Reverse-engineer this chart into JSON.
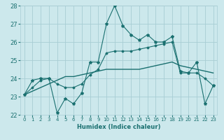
{
  "xlabel": "Humidex (Indice chaleur)",
  "background_color": "#cce8ec",
  "grid_color": "#a8cdd4",
  "line_color": "#1a7070",
  "xlim": [
    -0.5,
    23.5
  ],
  "ylim": [
    22,
    28
  ],
  "yticks": [
    22,
    23,
    24,
    25,
    26,
    27,
    28
  ],
  "xticks": [
    0,
    1,
    2,
    3,
    4,
    5,
    6,
    7,
    8,
    9,
    10,
    11,
    12,
    13,
    14,
    15,
    16,
    17,
    18,
    19,
    20,
    21,
    22,
    23
  ],
  "x": [
    0,
    1,
    2,
    3,
    4,
    5,
    6,
    7,
    8,
    9,
    10,
    11,
    12,
    13,
    14,
    15,
    16,
    17,
    18,
    19,
    20,
    21,
    22,
    23
  ],
  "line1": [
    23.1,
    23.9,
    24.0,
    24.0,
    22.1,
    22.9,
    22.6,
    23.2,
    24.9,
    24.9,
    27.0,
    28.0,
    26.9,
    26.4,
    26.1,
    26.4,
    26.0,
    26.0,
    26.3,
    24.4,
    24.3,
    24.9,
    22.6,
    23.6
  ],
  "line2": [
    23.1,
    23.5,
    23.9,
    24.0,
    23.7,
    23.5,
    23.5,
    23.7,
    24.2,
    24.5,
    25.4,
    25.5,
    25.5,
    25.5,
    25.6,
    25.7,
    25.8,
    25.9,
    26.0,
    24.3,
    24.3,
    24.3,
    24.0,
    23.6
  ],
  "line3": [
    23.1,
    23.3,
    23.5,
    23.7,
    23.9,
    24.1,
    24.1,
    24.2,
    24.3,
    24.4,
    24.5,
    24.5,
    24.5,
    24.5,
    24.5,
    24.6,
    24.7,
    24.8,
    24.9,
    24.7,
    24.6,
    24.5,
    24.4,
    24.3
  ]
}
